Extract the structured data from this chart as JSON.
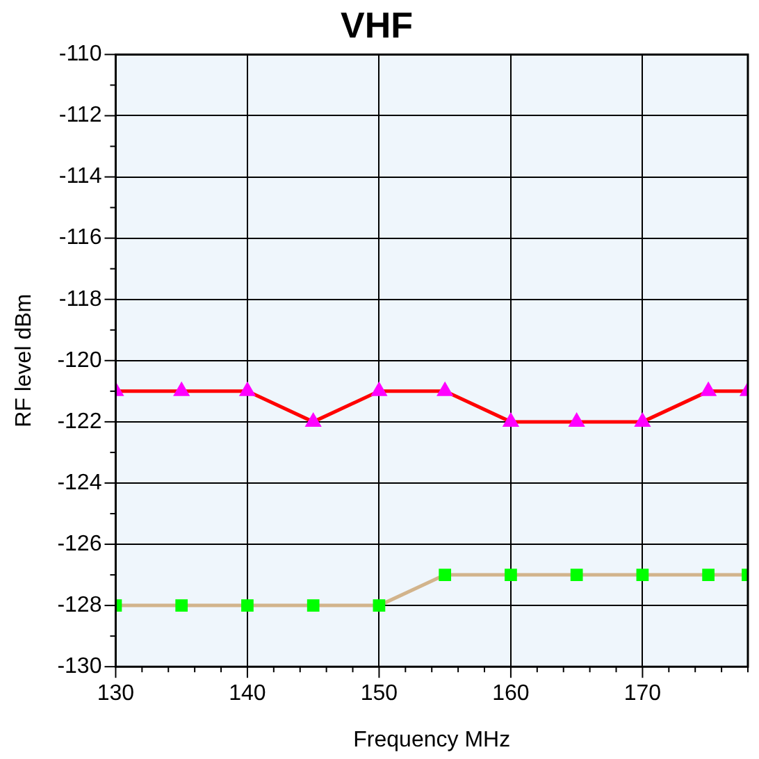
{
  "chart_data": {
    "type": "line",
    "title": "VHF",
    "xlabel": "Frequency MHz",
    "ylabel": "RF level dBm",
    "x": [
      130,
      135,
      140,
      145,
      150,
      155,
      160,
      165,
      170,
      175,
      178
    ],
    "series": [
      {
        "color": "#ff0000",
        "colors": [
          "#ff00ff",
          "#ff00ff",
          "#ff00ff",
          "#ff00ff",
          "#ff00ff",
          "#ff00ff",
          "#ff00ff",
          "#ff00ff",
          "#ff00ff",
          "#ff00ff",
          "#ff00ff"
        ],
        "marker": "triangle",
        "values": [
          -121,
          -121,
          -121,
          -122,
          -121,
          -121,
          -122,
          -122,
          -122,
          -121,
          -121
        ]
      },
      {
        "color": "#d2b48c",
        "colors": [
          "#00ff00",
          "#00ff00",
          "#00ff00",
          "#00ff00",
          "#00ff00",
          "#00ff00",
          "#00ff00",
          "#00ff00",
          "#00ff00",
          "#00ff00",
          "#00ff00"
        ],
        "marker": "square",
        "values": [
          -128,
          -128,
          -128,
          -128,
          -128,
          -127,
          -127,
          -127,
          -127,
          -127,
          -127
        ]
      }
    ],
    "xlim": [
      130,
      178
    ],
    "xticks": [
      130,
      140,
      150,
      160,
      170
    ],
    "ylim": [
      -130,
      -110
    ],
    "yticks": [
      -130,
      -128,
      -126,
      -124,
      -122,
      -120,
      -118,
      -116,
      -114,
      -112,
      -110
    ],
    "grid": true,
    "legend": false,
    "line_style": "solid"
  }
}
